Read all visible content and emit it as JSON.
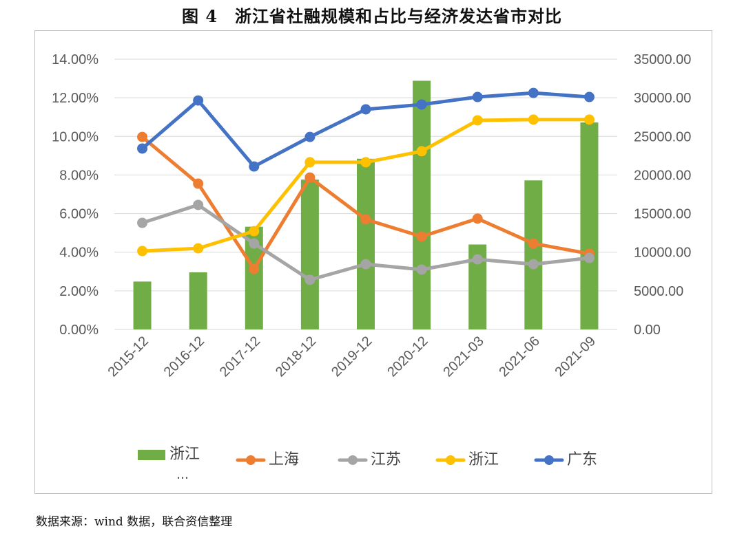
{
  "title": "图 4　浙江省社融规模和占比与经济发达省市对比",
  "source": "数据来源：wind 数据，联合资信整理",
  "legend_overflow": "…",
  "chart_data": {
    "type": "bar+line",
    "title": "图 4　浙江省社融规模和占比与经济发达省市对比",
    "categories": [
      "2015-12",
      "2016-12",
      "2017-12",
      "2018-12",
      "2019-12",
      "2020-12",
      "2021-03",
      "2021-06",
      "2021-09"
    ],
    "y_left": {
      "ylim": [
        0,
        14
      ],
      "ticks": [
        "0.00%",
        "2.00%",
        "4.00%",
        "6.00%",
        "8.00%",
        "10.00%",
        "12.00%",
        "14.00%"
      ]
    },
    "y_right": {
      "ylim": [
        0,
        35000
      ],
      "ticks": [
        "0.00",
        "5000.00",
        "10000.00",
        "15000.00",
        "20000.00",
        "25000.00",
        "30000.00",
        "35000.00"
      ]
    },
    "grid": true,
    "legend_position": "bottom",
    "bar_series": {
      "name": "浙江",
      "axis": "right",
      "color": "#70ad47",
      "values": [
        6200,
        7400,
        13300,
        19400,
        22100,
        32200,
        11000,
        19300,
        26800
      ]
    },
    "series": [
      {
        "name": "上海",
        "axis": "left",
        "color": "#ed7d31",
        "values": [
          9.97,
          7.55,
          3.13,
          7.87,
          5.7,
          4.81,
          5.74,
          4.45,
          3.92
        ]
      },
      {
        "name": "江苏",
        "axis": "left",
        "color": "#a5a5a5",
        "values": [
          5.52,
          6.45,
          4.45,
          2.57,
          3.38,
          3.1,
          3.63,
          3.38,
          3.7
        ]
      },
      {
        "name": "浙江",
        "axis": "left",
        "color": "#ffc000",
        "values": [
          4.06,
          4.2,
          5.09,
          8.66,
          8.66,
          9.23,
          10.83,
          10.87,
          10.87
        ]
      },
      {
        "name": "广东",
        "axis": "left",
        "color": "#4472c4",
        "values": [
          9.37,
          11.86,
          8.44,
          9.97,
          11.4,
          11.65,
          12.04,
          12.25,
          12.04
        ]
      }
    ]
  }
}
